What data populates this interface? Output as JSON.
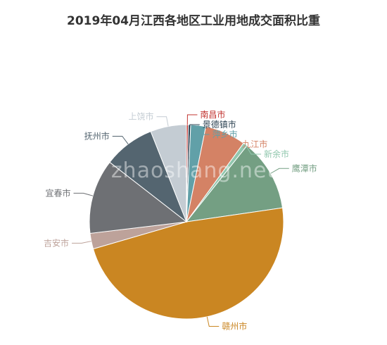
{
  "chart_data": {
    "type": "pie",
    "title": "2019年04月江西各地区工业用地成交面积比重",
    "watermark": "zhaoshang.net",
    "slices": [
      {
        "name": "南昌市",
        "value": 0.3,
        "color": "#c23531"
      },
      {
        "name": "景德镇市",
        "value": 0.4,
        "color": "#2f4554"
      },
      {
        "name": "萍乡市",
        "value": 2.5,
        "color": "#61a0a8"
      },
      {
        "name": "九江市",
        "value": 6.8,
        "color": "#d48265"
      },
      {
        "name": "新余市",
        "value": 0.7,
        "color": "#91c7ae"
      },
      {
        "name": "鹰潭市",
        "value": 12.0,
        "color": "#749f83"
      },
      {
        "name": "赣州市",
        "value": 47.8,
        "color": "#ca8622"
      },
      {
        "name": "吉安市",
        "value": 2.6,
        "color": "#bda29a"
      },
      {
        "name": "宜春市",
        "value": 12.4,
        "color": "#6e7074"
      },
      {
        "name": "抚州市",
        "value": 8.5,
        "color": "#546570"
      },
      {
        "name": "上饶市",
        "value": 6.0,
        "color": "#c4ccd3"
      }
    ]
  }
}
